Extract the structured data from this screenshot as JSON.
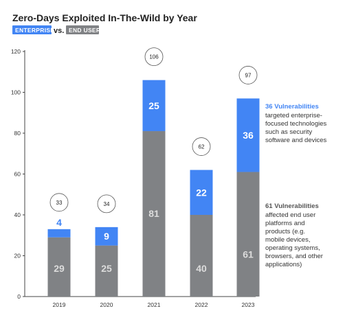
{
  "title": "Zero-Days Exploited In-The-Wild by Year",
  "legend": {
    "enterprise_label": "ENTERPRISE",
    "vs_label": "vs.",
    "enduser_label": "END USER"
  },
  "colors": {
    "enterprise": "#4285F4",
    "end_user": "#808285",
    "axis": "#444444",
    "text": "#222222"
  },
  "chart_data": {
    "type": "bar",
    "stacked": true,
    "title": "Zero-Days Exploited In-The-Wild by Year",
    "categories": [
      "2019",
      "2020",
      "2021",
      "2022",
      "2023"
    ],
    "series": [
      {
        "name": "END USER",
        "values": [
          29,
          25,
          81,
          40,
          61
        ]
      },
      {
        "name": "ENTERPRISE",
        "values": [
          4,
          9,
          25,
          22,
          36
        ]
      }
    ],
    "totals": [
      33,
      34,
      106,
      62,
      97
    ],
    "ylim": [
      0,
      120
    ],
    "yticks": [
      0,
      20,
      40,
      60,
      80,
      100,
      120
    ],
    "xlabel": "",
    "ylabel": "",
    "grid": false,
    "legend_position": "top-left"
  },
  "annotations": {
    "enterprise": {
      "heading": "36 Vulnerabilities",
      "lines": [
        "targeted enterprise-",
        "focused technologies",
        "such as security",
        "software and devices"
      ]
    },
    "end_user": {
      "heading": "61 Vulnerabilities",
      "lines": [
        "affected end user",
        "platforms and",
        "products (e.g.",
        "mobile devices,",
        "operating systems,",
        "browsers, and other",
        "applications)"
      ]
    }
  }
}
